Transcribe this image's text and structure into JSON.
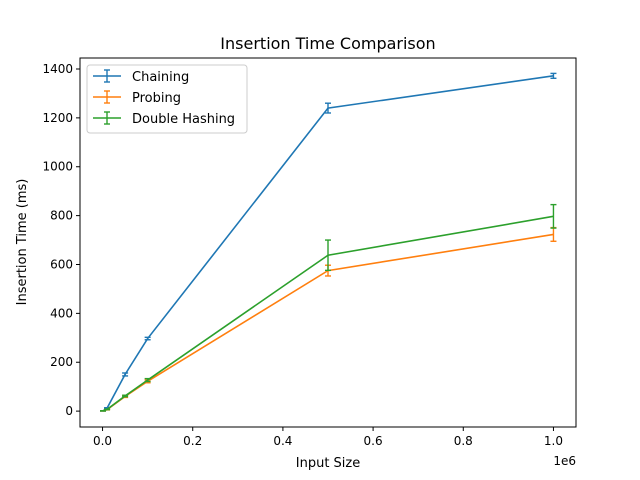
{
  "chart_data": {
    "type": "line",
    "title": "Insertion Time Comparison",
    "xlabel": "Input Size",
    "ylabel": "Insertion Time (ms)",
    "x_offset_label": "1e6",
    "xlim": [
      -50000,
      1050000
    ],
    "ylim": [
      -65,
      1445
    ],
    "x_ticks": [
      0,
      200000,
      400000,
      600000,
      800000,
      1000000
    ],
    "x_tick_labels": [
      "0.0",
      "0.2",
      "0.4",
      "0.6",
      "0.8",
      "1.0"
    ],
    "y_ticks": [
      0,
      200,
      400,
      600,
      800,
      1000,
      1200,
      1400
    ],
    "y_tick_labels": [
      "0",
      "200",
      "400",
      "600",
      "800",
      "1000",
      "1200",
      "1400"
    ],
    "grid": false,
    "legend_position": "top-left",
    "x": [
      1000,
      10000,
      50000,
      100000,
      500000,
      1000000
    ],
    "series": [
      {
        "name": "Chaining",
        "color": "#1f77b4",
        "values": [
          1,
          12,
          150,
          297,
          1240,
          1372
        ],
        "errors": [
          0.5,
          2,
          6,
          5,
          20,
          10
        ]
      },
      {
        "name": "Probing",
        "color": "#ff7f0e",
        "values": [
          1,
          6,
          60,
          122,
          575,
          723
        ],
        "errors": [
          0.5,
          1,
          4,
          6,
          22,
          28
        ]
      },
      {
        "name": "Double Hashing",
        "color": "#2ca02c",
        "values": [
          1,
          7,
          62,
          127,
          638,
          797
        ],
        "errors": [
          0.5,
          1,
          3,
          6,
          62,
          48
        ]
      }
    ]
  }
}
